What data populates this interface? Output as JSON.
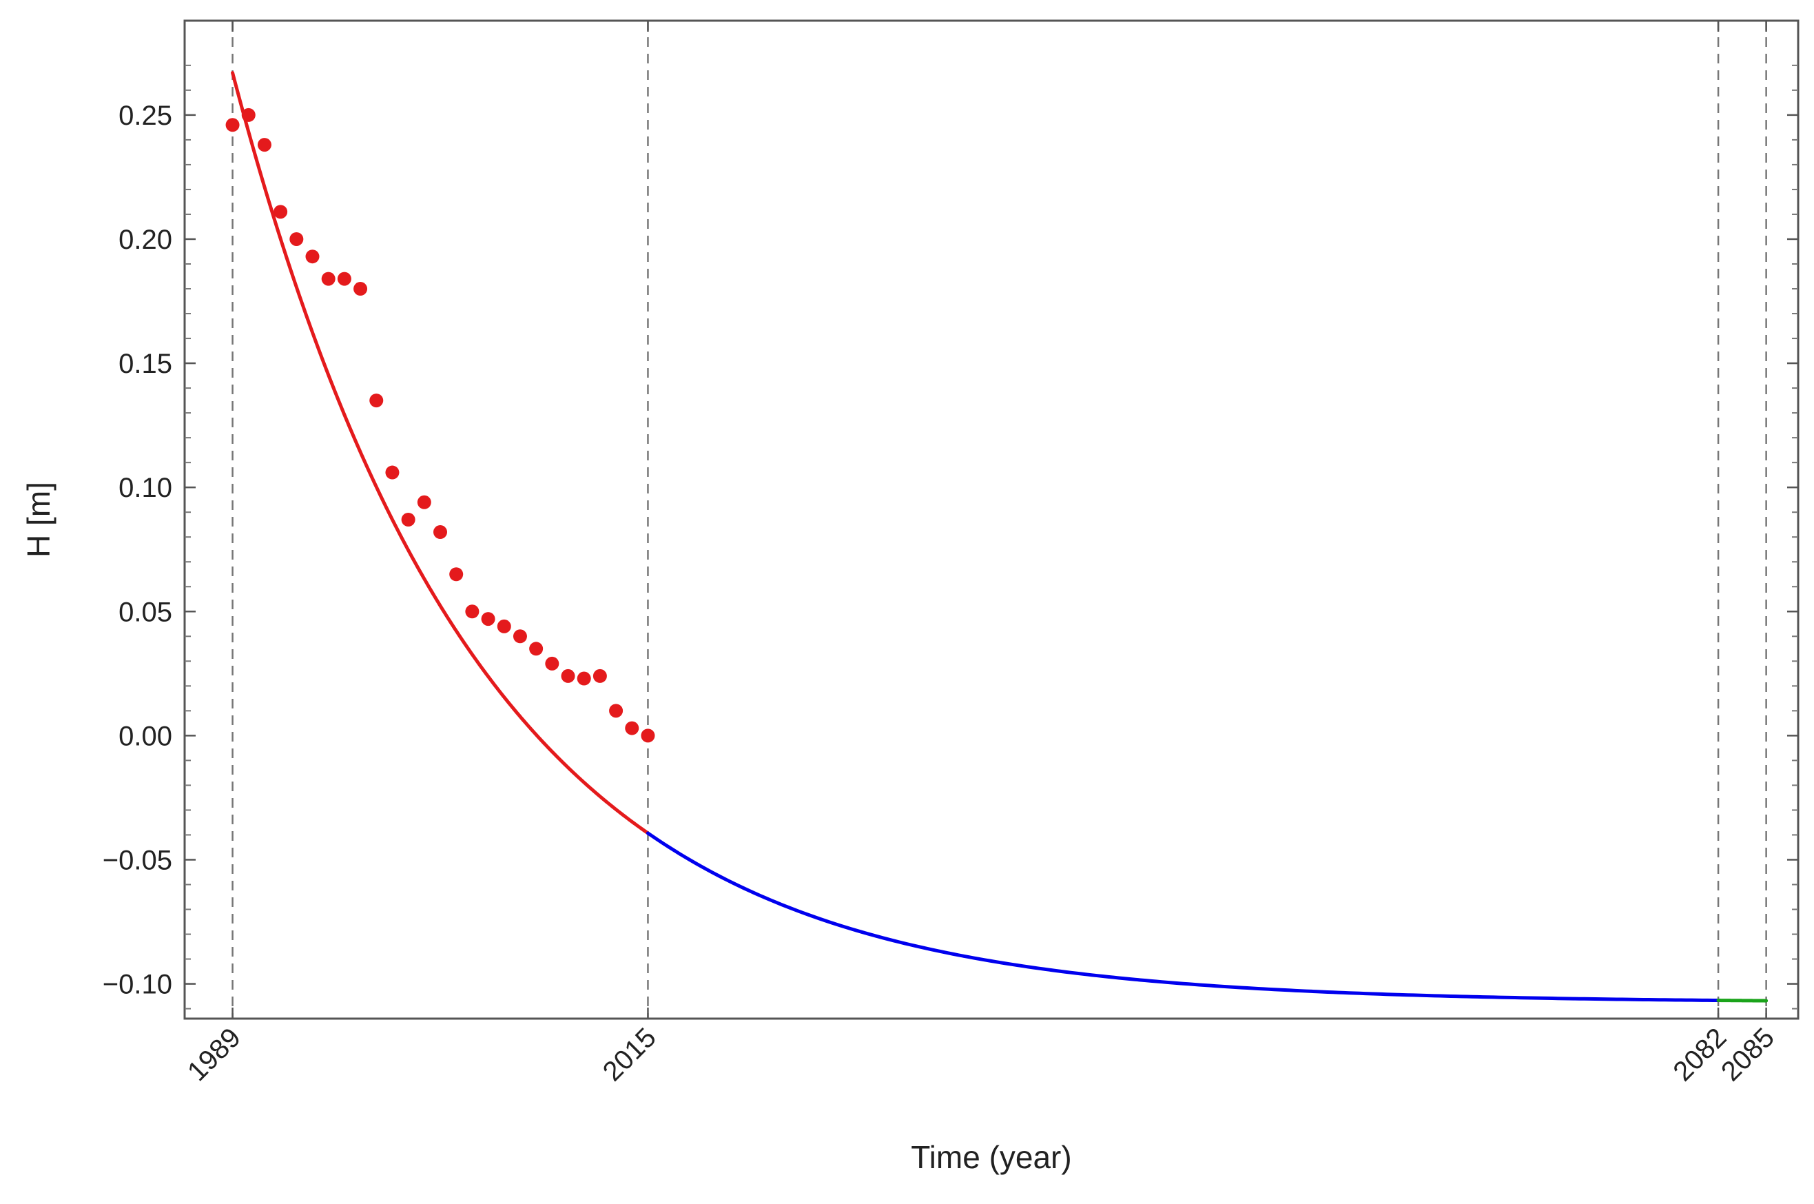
{
  "chart_data": {
    "type": "scatter",
    "title": "",
    "xlabel": "Time (year)",
    "ylabel": "H [m]",
    "xlim": [
      1986,
      2087
    ],
    "ylim": [
      -0.114,
      0.288
    ],
    "x_ticks": [
      {
        "value": 1989,
        "label": "1989"
      },
      {
        "value": 2015,
        "label": "2015"
      },
      {
        "value": 2082,
        "label": "2082"
      },
      {
        "value": 2085,
        "label": "2085"
      }
    ],
    "y_ticks": [
      {
        "value": 0.25,
        "label": "0.25"
      },
      {
        "value": 0.2,
        "label": "0.20"
      },
      {
        "value": 0.15,
        "label": "0.15"
      },
      {
        "value": 0.1,
        "label": "0.10"
      },
      {
        "value": 0.05,
        "label": "0.05"
      },
      {
        "value": 0.0,
        "label": "0.00"
      },
      {
        "value": -0.05,
        "label": "−0.05"
      },
      {
        "value": -0.1,
        "label": "−0.10"
      }
    ],
    "vertical_reference_lines": [
      1989,
      2015,
      2082,
      2085
    ],
    "grid": false,
    "legend": "none",
    "series": [
      {
        "kind": "points",
        "color": "#e41a1c",
        "points": [
          [
            1989.0,
            0.246
          ],
          [
            1990.0,
            0.25
          ],
          [
            1991.0,
            0.238
          ],
          [
            1992.0,
            0.211
          ],
          [
            1993.0,
            0.2
          ],
          [
            1994.0,
            0.193
          ],
          [
            1995.0,
            0.184
          ],
          [
            1996.0,
            0.184
          ],
          [
            1997.0,
            0.18
          ],
          [
            1998.0,
            0.135
          ],
          [
            1999.0,
            0.106
          ],
          [
            2000.0,
            0.087
          ],
          [
            2001.0,
            0.094
          ],
          [
            2002.0,
            0.082
          ],
          [
            2003.0,
            0.065
          ],
          [
            2004.0,
            0.05
          ],
          [
            2005.0,
            0.047
          ],
          [
            2006.0,
            0.044
          ],
          [
            2007.0,
            0.04
          ],
          [
            2008.0,
            0.035
          ],
          [
            2009.0,
            0.029
          ],
          [
            2010.0,
            0.024
          ],
          [
            2011.0,
            0.023
          ],
          [
            2012.0,
            0.024
          ],
          [
            2013.0,
            0.01
          ],
          [
            2014.0,
            0.003
          ],
          [
            2015.0,
            0.0
          ]
        ]
      },
      {
        "kind": "curve",
        "color": "#e41a1c",
        "model": "exponential_decay",
        "asymptote": -0.1075,
        "amplitude_at_1989": 0.3745,
        "rate_per_year": 0.0655,
        "x_range": [
          1989,
          2015
        ]
      },
      {
        "kind": "curve",
        "color": "#0000ee",
        "model": "exponential_decay",
        "asymptote": -0.1075,
        "amplitude_at_1989": 0.3745,
        "rate_per_year": 0.0655,
        "x_range": [
          2015,
          2082
        ]
      },
      {
        "kind": "curve",
        "color": "#1aa31a",
        "model": "exponential_decay",
        "asymptote": -0.1075,
        "amplitude_at_1989": 0.3745,
        "rate_per_year": 0.0655,
        "x_range": [
          2082,
          2085
        ]
      }
    ]
  }
}
